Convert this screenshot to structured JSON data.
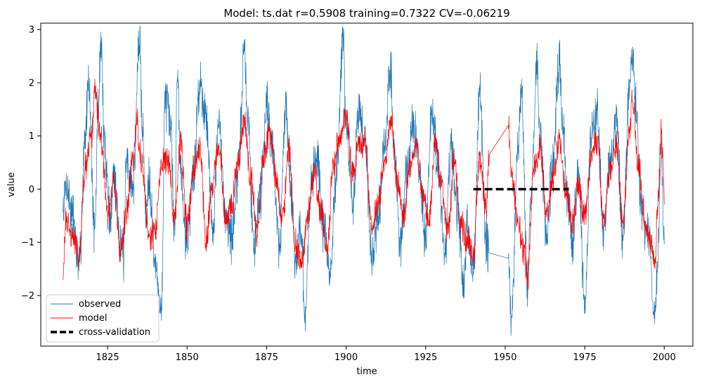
{
  "chart_data": {
    "type": "line",
    "title": "Model: ts.dat  r=0.5908  training=0.7322  CV=-0.06219",
    "xlabel": "time",
    "ylabel": "value",
    "xlim": [
      1804,
      2009
    ],
    "ylim": [
      -2.95,
      3.12
    ],
    "x_ticks": [
      1825,
      1850,
      1875,
      1900,
      1925,
      1950,
      1975,
      2000
    ],
    "y_ticks": [
      -2,
      -1,
      0,
      1,
      2,
      3
    ],
    "y_tick_labels": [
      "−2",
      "−1",
      "0",
      "1",
      "2",
      "3"
    ],
    "legend": {
      "position": "lower-left",
      "entries": [
        {
          "label": "observed",
          "color": "#1f77b4",
          "style": "solid-thin"
        },
        {
          "label": "model",
          "color": "#ff0000",
          "style": "solid-thin"
        },
        {
          "label": "cross-validation",
          "color": "#000000",
          "style": "dashed-thick"
        }
      ]
    },
    "series": [
      {
        "name": "observed",
        "color": "#1f77b4",
        "x_start": 1811,
        "x_end": 2000,
        "gap": [
          1945,
          1951
        ],
        "anchors": [
          [
            1811,
            -0.4
          ],
          [
            1812,
            0.1
          ],
          [
            1814,
            -0.5
          ],
          [
            1816,
            -1.5
          ],
          [
            1818,
            1.0
          ],
          [
            1819,
            2.1
          ],
          [
            1821,
            -0.9
          ],
          [
            1822,
            1.5
          ],
          [
            1823,
            2.8
          ],
          [
            1824,
            0.8
          ],
          [
            1826,
            -0.6
          ],
          [
            1827,
            0.3
          ],
          [
            1829,
            -0.9
          ],
          [
            1830,
            -1.3
          ],
          [
            1831,
            0.5
          ],
          [
            1833,
            0.0
          ],
          [
            1835,
            2.8
          ],
          [
            1836,
            1.2
          ],
          [
            1837,
            -0.5
          ],
          [
            1838,
            0.3
          ],
          [
            1840,
            -1.5
          ],
          [
            1842,
            -2.3
          ],
          [
            1843,
            1.7
          ],
          [
            1845,
            1.1
          ],
          [
            1846,
            -0.8
          ],
          [
            1847,
            2.2
          ],
          [
            1848,
            0.4
          ],
          [
            1850,
            -1.0
          ],
          [
            1852,
            0.3
          ],
          [
            1854,
            2.0
          ],
          [
            1856,
            1.4
          ],
          [
            1858,
            -0.7
          ],
          [
            1860,
            1.2
          ],
          [
            1862,
            -0.4
          ],
          [
            1864,
            -0.9
          ],
          [
            1866,
            0.2
          ],
          [
            1868,
            2.6
          ],
          [
            1869,
            1.4
          ],
          [
            1871,
            -1.0
          ],
          [
            1873,
            -0.1
          ],
          [
            1875,
            1.6
          ],
          [
            1877,
            0.7
          ],
          [
            1879,
            -1.1
          ],
          [
            1881,
            1.5
          ],
          [
            1883,
            -0.2
          ],
          [
            1884,
            -1.3
          ],
          [
            1886,
            -0.7
          ],
          [
            1887,
            -2.6
          ],
          [
            1889,
            0.1
          ],
          [
            1891,
            0.6
          ],
          [
            1893,
            -0.8
          ],
          [
            1895,
            -1.6
          ],
          [
            1897,
            0.4
          ],
          [
            1899,
            2.8
          ],
          [
            1900,
            1.2
          ],
          [
            1902,
            -0.3
          ],
          [
            1904,
            1.5
          ],
          [
            1906,
            0.9
          ],
          [
            1908,
            -1.2
          ],
          [
            1910,
            -0.6
          ],
          [
            1912,
            0.7
          ],
          [
            1914,
            2.3
          ],
          [
            1915,
            0.8
          ],
          [
            1917,
            -1.0
          ],
          [
            1919,
            0.2
          ],
          [
            1921,
            1.3
          ],
          [
            1923,
            0.4
          ],
          [
            1925,
            -0.9
          ],
          [
            1927,
            1.5
          ],
          [
            1929,
            0.3
          ],
          [
            1931,
            -1.2
          ],
          [
            1933,
            0.7
          ],
          [
            1935,
            -0.4
          ],
          [
            1937,
            -1.9
          ],
          [
            1938,
            -0.8
          ],
          [
            1940,
            -1.5
          ],
          [
            1942,
            1.8
          ],
          [
            1944,
            -1.0
          ],
          [
            1945,
            -1.2
          ],
          [
            1951,
            -1.3
          ],
          [
            1952,
            -2.5
          ],
          [
            1954,
            0.8
          ],
          [
            1955,
            1.9
          ],
          [
            1957,
            -1.7
          ],
          [
            1958,
            -0.3
          ],
          [
            1960,
            2.3
          ],
          [
            1961,
            1.0
          ],
          [
            1963,
            -0.9
          ],
          [
            1965,
            0.5
          ],
          [
            1967,
            2.4
          ],
          [
            1968,
            1.1
          ],
          [
            1970,
            -0.4
          ],
          [
            1971,
            -1.0
          ],
          [
            1973,
            0.3
          ],
          [
            1975,
            -2.2
          ],
          [
            1977,
            0.9
          ],
          [
            1979,
            1.4
          ],
          [
            1981,
            -0.8
          ],
          [
            1983,
            0.5
          ],
          [
            1985,
            1.3
          ],
          [
            1987,
            -1.0
          ],
          [
            1989,
            1.8
          ],
          [
            1990,
            2.5
          ],
          [
            1991,
            1.6
          ],
          [
            1993,
            -0.5
          ],
          [
            1995,
            -0.9
          ],
          [
            1997,
            -2.4
          ],
          [
            1998,
            -1.2
          ],
          [
            1999,
            0.9
          ],
          [
            2000,
            -0.9
          ]
        ]
      },
      {
        "name": "model",
        "color": "#ff0000",
        "x_start": 1811,
        "x_end": 2000,
        "gap": [
          1945,
          1951
        ],
        "anchors": [
          [
            1811,
            -1.5
          ],
          [
            1812,
            -0.6
          ],
          [
            1814,
            -0.9
          ],
          [
            1816,
            -1.2
          ],
          [
            1818,
            0.4
          ],
          [
            1820,
            1.0
          ],
          [
            1821,
            1.9
          ],
          [
            1823,
            0.9
          ],
          [
            1825,
            -0.5
          ],
          [
            1827,
            0.1
          ],
          [
            1829,
            -1.2
          ],
          [
            1831,
            -0.4
          ],
          [
            1833,
            0.6
          ],
          [
            1834,
            1.3
          ],
          [
            1836,
            0.4
          ],
          [
            1838,
            -0.9
          ],
          [
            1840,
            -0.8
          ],
          [
            1842,
            0.5
          ],
          [
            1844,
            0.6
          ],
          [
            1846,
            -0.6
          ],
          [
            1848,
            0.9
          ],
          [
            1850,
            -0.7
          ],
          [
            1852,
            0.4
          ],
          [
            1854,
            0.8
          ],
          [
            1856,
            -0.9
          ],
          [
            1858,
            0.1
          ],
          [
            1860,
            0.8
          ],
          [
            1862,
            -0.6
          ],
          [
            1864,
            -0.3
          ],
          [
            1866,
            0.5
          ],
          [
            1868,
            1.3
          ],
          [
            1870,
            0.2
          ],
          [
            1872,
            -0.8
          ],
          [
            1874,
            0.6
          ],
          [
            1876,
            1.1
          ],
          [
            1878,
            0.2
          ],
          [
            1880,
            -0.6
          ],
          [
            1882,
            0.8
          ],
          [
            1884,
            -1.0
          ],
          [
            1886,
            -1.4
          ],
          [
            1888,
            -0.5
          ],
          [
            1890,
            0.3
          ],
          [
            1892,
            -0.4
          ],
          [
            1894,
            -1.1
          ],
          [
            1896,
            0.4
          ],
          [
            1898,
            1.0
          ],
          [
            1900,
            1.4
          ],
          [
            1902,
            0.3
          ],
          [
            1904,
            0.8
          ],
          [
            1906,
            0.9
          ],
          [
            1908,
            -0.7
          ],
          [
            1910,
            -0.3
          ],
          [
            1912,
            0.5
          ],
          [
            1914,
            1.3
          ],
          [
            1916,
            0.2
          ],
          [
            1918,
            -0.6
          ],
          [
            1920,
            0.4
          ],
          [
            1922,
            0.9
          ],
          [
            1924,
            -0.1
          ],
          [
            1926,
            -0.6
          ],
          [
            1928,
            0.9
          ],
          [
            1930,
            0.1
          ],
          [
            1932,
            -0.8
          ],
          [
            1934,
            0.5
          ],
          [
            1936,
            -0.6
          ],
          [
            1938,
            -1.0
          ],
          [
            1940,
            -1.2
          ],
          [
            1942,
            0.6
          ],
          [
            1944,
            -0.4
          ],
          [
            1945,
            0.65
          ],
          [
            1951,
            1.2
          ],
          [
            1952,
            0.3
          ],
          [
            1954,
            -0.6
          ],
          [
            1956,
            -1.2
          ],
          [
            1957,
            -1.7
          ],
          [
            1959,
            0.4
          ],
          [
            1961,
            0.8
          ],
          [
            1963,
            -0.5
          ],
          [
            1965,
            0.2
          ],
          [
            1967,
            0.9
          ],
          [
            1969,
            0.0
          ],
          [
            1971,
            -0.7
          ],
          [
            1973,
            0.1
          ],
          [
            1975,
            -0.5
          ],
          [
            1977,
            0.6
          ],
          [
            1979,
            0.9
          ],
          [
            1981,
            -0.6
          ],
          [
            1983,
            0.4
          ],
          [
            1985,
            0.8
          ],
          [
            1987,
            -0.7
          ],
          [
            1989,
            1.0
          ],
          [
            1990,
            1.7
          ],
          [
            1992,
            0.4
          ],
          [
            1994,
            -0.7
          ],
          [
            1996,
            -1.1
          ],
          [
            1997,
            -1.4
          ],
          [
            1998,
            -0.3
          ],
          [
            1999,
            1.0
          ],
          [
            2000,
            0.0
          ]
        ]
      },
      {
        "name": "cross-validation",
        "color": "#000000",
        "x": [
          1940,
          1970
        ],
        "y": [
          0.0,
          0.0
        ]
      }
    ]
  }
}
